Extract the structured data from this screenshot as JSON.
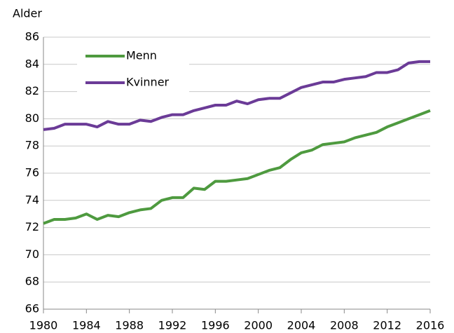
{
  "chart_data": {
    "type": "line",
    "y_label": "Alder",
    "x": [
      1980,
      1981,
      1982,
      1983,
      1984,
      1985,
      1986,
      1987,
      1988,
      1989,
      1990,
      1991,
      1992,
      1993,
      1994,
      1995,
      1996,
      1997,
      1998,
      1999,
      2000,
      2001,
      2002,
      2003,
      2004,
      2005,
      2006,
      2007,
      2008,
      2009,
      2010,
      2011,
      2012,
      2013,
      2014,
      2015,
      2016
    ],
    "series": [
      {
        "name": "Menn",
        "color": "#4e9a3f",
        "values": [
          72.3,
          72.6,
          72.6,
          72.7,
          73.0,
          72.6,
          72.9,
          72.8,
          73.1,
          73.3,
          73.4,
          74.0,
          74.2,
          74.2,
          74.9,
          74.8,
          75.4,
          75.4,
          75.5,
          75.6,
          75.9,
          76.2,
          76.4,
          77.0,
          77.5,
          77.7,
          78.1,
          78.2,
          78.3,
          78.6,
          78.8,
          79.0,
          79.4,
          79.7,
          80.0,
          80.3,
          80.6
        ]
      },
      {
        "name": "Kvinner",
        "color": "#6b3b97",
        "values": [
          79.2,
          79.3,
          79.6,
          79.6,
          79.6,
          79.4,
          79.8,
          79.6,
          79.6,
          79.9,
          79.8,
          80.1,
          80.3,
          80.3,
          80.6,
          80.8,
          81.0,
          81.0,
          81.3,
          81.1,
          81.4,
          81.5,
          81.5,
          81.9,
          82.3,
          82.5,
          82.7,
          82.7,
          82.9,
          83.0,
          83.1,
          83.4,
          83.4,
          83.6,
          84.1,
          84.2,
          84.2
        ]
      }
    ],
    "xlim": [
      1980,
      2016
    ],
    "xticks": [
      1980,
      1984,
      1988,
      1992,
      1996,
      2000,
      2004,
      2008,
      2012,
      2016
    ],
    "ylim": [
      66,
      86
    ],
    "yticks": [
      66,
      68,
      70,
      72,
      74,
      76,
      78,
      80,
      82,
      84,
      86
    ],
    "grid": true,
    "legend": "upper left"
  }
}
